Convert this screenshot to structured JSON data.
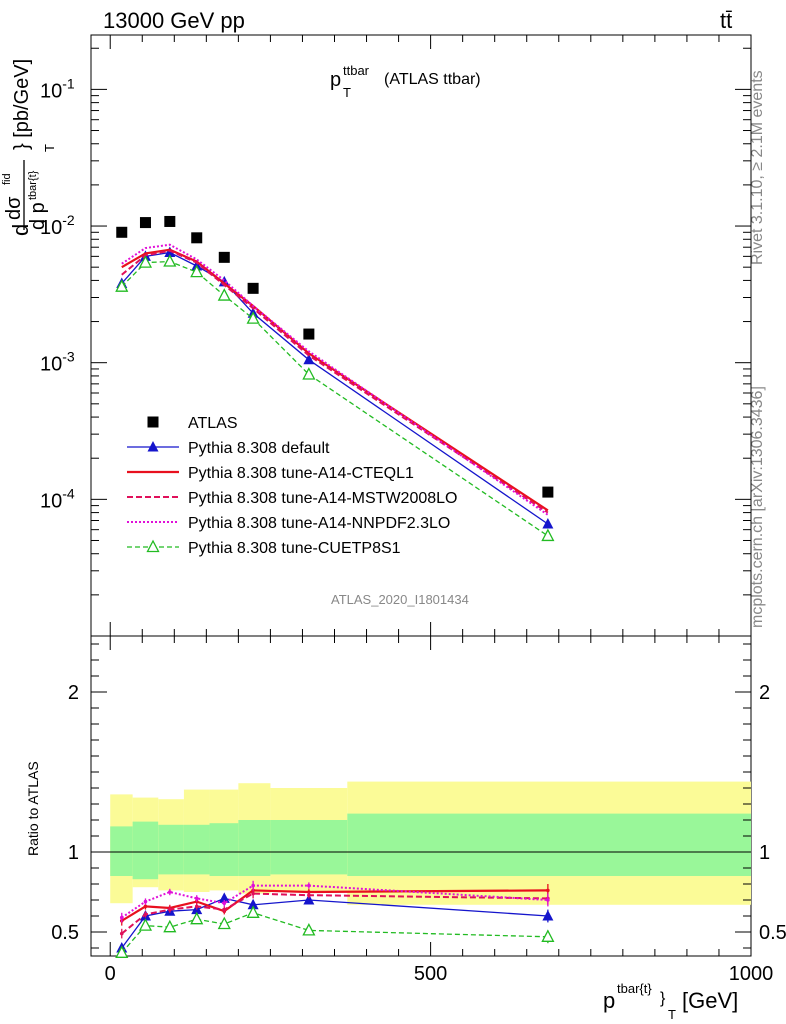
{
  "header": {
    "left": "13000 GeV pp",
    "right": "tt̄",
    "side_rivet": "Rivet 3.1.10, ≥ 2.1M events",
    "side_mcplots": "mcplots.cern.ch [arXiv:1306.3436]",
    "analysis_id": "ATLAS_2020_I1801434"
  },
  "main_title": {
    "p": "p",
    "sup": "ttbar",
    "sub": "T",
    "rest": "(ATLAS ttbar)"
  },
  "ylabel_top": {
    "d1": "d",
    "dsigma": "dσ",
    "fid": "fid",
    "dp": "d p",
    "sub": "tbar{t}",
    "T": "T",
    "unit": "} [pb/GeV]"
  },
  "ylabel_ratio": "Ratio to ATLAS",
  "xlabel": {
    "p": "p",
    "sup": "tbar{t}",
    "sub": "}",
    "T": "T",
    "unit": "[GeV]"
  },
  "colors": {
    "atlas": "#000000",
    "default": "#1515cc",
    "cteq": "#e8101e",
    "mstw": "#e0105a",
    "nnpdf": "#e010d8",
    "cuetp8": "#22bb22",
    "band_inner": "#99f799",
    "band_outer": "#fbfb97"
  },
  "chart_data": [
    {
      "type": "line",
      "title": "p_T^ttbar (ATLAS ttbar)",
      "xlabel": "p^tbar{t}}_T [GeV]",
      "ylabel": "dσ^fid / d p^tbar{t}_T } [pb/GeV]",
      "yscale": "log",
      "xlim": [
        -30,
        1000
      ],
      "ylim": [
        1e-05,
        0.25
      ],
      "x_ticks": [
        0,
        500,
        1000
      ],
      "y_tick_labels": [
        "10^-4",
        "10^-3",
        "10^-2",
        "10^-1"
      ],
      "legend_position": "lower-left",
      "x": [
        18,
        55,
        93,
        135,
        178,
        223,
        310,
        683
      ],
      "series": [
        {
          "name": "ATLAS",
          "values": [
            0.009,
            0.0106,
            0.0108,
            0.0082,
            0.0059,
            0.0035,
            0.00162,
            0.000113
          ]
        },
        {
          "name": "Pythia 8.308 default",
          "values": [
            0.0038,
            0.006,
            0.0064,
            0.0051,
            0.0039,
            0.0023,
            0.00105,
            6.6e-05
          ]
        },
        {
          "name": "Pythia 8.308 tune-A14-CTEQL1",
          "values": [
            0.005,
            0.0063,
            0.0067,
            0.0055,
            0.0038,
            0.0026,
            0.00117,
            8.3e-05
          ]
        },
        {
          "name": "Pythia 8.308 tune-A14-MSTW2008LO",
          "values": [
            0.0044,
            0.0061,
            0.0066,
            0.0054,
            0.0037,
            0.0025,
            0.00113,
            8e-05
          ]
        },
        {
          "name": "Pythia 8.308 tune-A14-NNPDF2.3LO",
          "values": [
            0.0053,
            0.0069,
            0.0073,
            0.0057,
            0.004,
            0.0026,
            0.00121,
            7.7e-05
          ]
        },
        {
          "name": "Pythia 8.308 tune-CUETP8S1",
          "values": [
            0.0036,
            0.0054,
            0.0055,
            0.0046,
            0.0031,
            0.0021,
            0.00082,
            5.4e-05
          ]
        }
      ]
    },
    {
      "type": "line",
      "ylabel": "Ratio to ATLAS",
      "xlabel": "p^tbar{t}}_T [GeV]",
      "xlim": [
        -30,
        1000
      ],
      "ylim": [
        0.35,
        2.35
      ],
      "y_tick_labels": [
        "0.5",
        "1",
        "2"
      ],
      "x": [
        18,
        55,
        93,
        135,
        178,
        223,
        310,
        683
      ],
      "bin_edges": [
        0,
        35,
        75,
        115,
        155,
        200,
        250,
        370,
        1000
      ],
      "uncertainty_inner": [
        [
          0.85,
          1.16
        ],
        [
          0.83,
          1.19
        ],
        [
          0.86,
          1.17
        ],
        [
          0.86,
          1.17
        ],
        [
          0.85,
          1.18
        ],
        [
          0.85,
          1.2
        ],
        [
          0.86,
          1.2
        ],
        [
          0.85,
          1.24
        ]
      ],
      "uncertainty_outer": [
        [
          0.68,
          1.36
        ],
        [
          0.78,
          1.34
        ],
        [
          0.76,
          1.33
        ],
        [
          0.75,
          1.39
        ],
        [
          0.76,
          1.39
        ],
        [
          0.74,
          1.43
        ],
        [
          0.75,
          1.4
        ],
        [
          0.67,
          1.44
        ]
      ],
      "series": [
        {
          "name": "Pythia 8.308 default",
          "values": [
            0.4,
            0.6,
            0.63,
            0.64,
            0.71,
            0.67,
            0.7,
            0.6
          ],
          "errors": [
            0.03,
            0.02,
            0.02,
            0.02,
            0.02,
            0.02,
            0.02,
            0.04
          ]
        },
        {
          "name": "Pythia 8.308 tune-A14-CTEQL1",
          "values": [
            0.57,
            0.66,
            0.65,
            0.69,
            0.63,
            0.76,
            0.75,
            0.76
          ],
          "errors": [
            0.03,
            0.02,
            0.02,
            0.02,
            0.02,
            0.03,
            0.02,
            0.04
          ]
        },
        {
          "name": "Pythia 8.308 tune-A14-MSTW2008LO",
          "values": [
            0.49,
            0.61,
            0.64,
            0.66,
            0.64,
            0.74,
            0.73,
            0.71
          ],
          "errors": [
            0.03,
            0.02,
            0.02,
            0.02,
            0.02,
            0.03,
            0.02,
            0.04
          ]
        },
        {
          "name": "Pythia 8.308 tune-A14-NNPDF2.3LO",
          "values": [
            0.59,
            0.69,
            0.75,
            0.71,
            0.68,
            0.79,
            0.79,
            0.7
          ],
          "errors": [
            0.03,
            0.02,
            0.02,
            0.02,
            0.02,
            0.03,
            0.02,
            0.04
          ]
        },
        {
          "name": "Pythia 8.308 tune-CUETP8S1",
          "values": [
            0.37,
            0.54,
            0.53,
            0.58,
            0.55,
            0.62,
            0.51,
            0.47
          ],
          "errors": [
            0.03,
            0.02,
            0.02,
            0.02,
            0.02,
            0.03,
            0.02,
            0.04
          ]
        }
      ]
    }
  ]
}
